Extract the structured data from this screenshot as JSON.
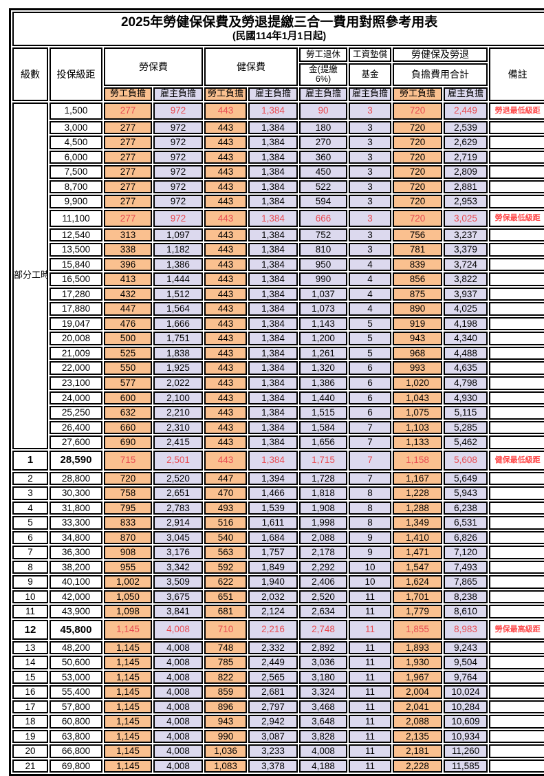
{
  "title": {
    "line1": "2025年勞健保保費及勞退提繳三合一費用對照參考用表",
    "line2": "(民國114年1月1日起)"
  },
  "header": {
    "level": "級數",
    "bracket": "投保級距",
    "labor_group": "勞保費",
    "health_group": "健保費",
    "pension_line1": "勞工退休",
    "pension_line2": "金(提繳6%)",
    "wage_fund_line1": "工資墊償",
    "wage_fund_line2": "基金",
    "total_line1": "勞健保及勞退",
    "total_line2": "負擔費用合計",
    "note": "備註",
    "sub": [
      "勞工負擔",
      "雇主負擔",
      "勞工負擔",
      "雇主負擔",
      "雇主負擔",
      "雇主負擔",
      "勞工負擔",
      "雇主負擔"
    ]
  },
  "group": {
    "label": "部分工時",
    "span": 23
  },
  "colors": {
    "employee_bg": "#FAC08F",
    "employer_bg": "#DCD9EE",
    "value_red": "#E84C52",
    "note_red": "#FF4D4D",
    "border": "#000000"
  },
  "rows": [
    {
      "level": "",
      "bracket": "1,500",
      "values": [
        "277",
        "972",
        "443",
        "1,384",
        "90",
        "3",
        "720",
        "2,449"
      ],
      "note": "勞退最低級距",
      "red": true,
      "bold": false
    },
    {
      "level": "",
      "bracket": "3,000",
      "values": [
        "277",
        "972",
        "443",
        "1,384",
        "180",
        "3",
        "720",
        "2,539"
      ],
      "note": "",
      "red": false,
      "bold": false
    },
    {
      "level": "",
      "bracket": "4,500",
      "values": [
        "277",
        "972",
        "443",
        "1,384",
        "270",
        "3",
        "720",
        "2,629"
      ],
      "note": "",
      "red": false,
      "bold": false
    },
    {
      "level": "",
      "bracket": "6,000",
      "values": [
        "277",
        "972",
        "443",
        "1,384",
        "360",
        "3",
        "720",
        "2,719"
      ],
      "note": "",
      "red": false,
      "bold": false
    },
    {
      "level": "",
      "bracket": "7,500",
      "values": [
        "277",
        "972",
        "443",
        "1,384",
        "450",
        "3",
        "720",
        "2,809"
      ],
      "note": "",
      "red": false,
      "bold": false
    },
    {
      "level": "",
      "bracket": "8,700",
      "values": [
        "277",
        "972",
        "443",
        "1,384",
        "522",
        "3",
        "720",
        "2,881"
      ],
      "note": "",
      "red": false,
      "bold": false
    },
    {
      "level": "",
      "bracket": "9,900",
      "values": [
        "277",
        "972",
        "443",
        "1,384",
        "594",
        "3",
        "720",
        "2,953"
      ],
      "note": "",
      "red": false,
      "bold": false
    },
    {
      "level": "",
      "bracket": "11,100",
      "values": [
        "277",
        "972",
        "443",
        "1,384",
        "666",
        "3",
        "720",
        "3,025"
      ],
      "note": "勞保最低級距",
      "red": true,
      "bold": false
    },
    {
      "level": "",
      "bracket": "12,540",
      "values": [
        "313",
        "1,097",
        "443",
        "1,384",
        "752",
        "3",
        "756",
        "3,237"
      ],
      "note": "",
      "red": false,
      "bold": false
    },
    {
      "level": "",
      "bracket": "13,500",
      "values": [
        "338",
        "1,182",
        "443",
        "1,384",
        "810",
        "3",
        "781",
        "3,379"
      ],
      "note": "",
      "red": false,
      "bold": false
    },
    {
      "level": "",
      "bracket": "15,840",
      "values": [
        "396",
        "1,386",
        "443",
        "1,384",
        "950",
        "4",
        "839",
        "3,724"
      ],
      "note": "",
      "red": false,
      "bold": false
    },
    {
      "level": "",
      "bracket": "16,500",
      "values": [
        "413",
        "1,444",
        "443",
        "1,384",
        "990",
        "4",
        "856",
        "3,822"
      ],
      "note": "",
      "red": false,
      "bold": false
    },
    {
      "level": "",
      "bracket": "17,280",
      "values": [
        "432",
        "1,512",
        "443",
        "1,384",
        "1,037",
        "4",
        "875",
        "3,937"
      ],
      "note": "",
      "red": false,
      "bold": false
    },
    {
      "level": "",
      "bracket": "17,880",
      "values": [
        "447",
        "1,564",
        "443",
        "1,384",
        "1,073",
        "4",
        "890",
        "4,025"
      ],
      "note": "",
      "red": false,
      "bold": false
    },
    {
      "level": "",
      "bracket": "19,047",
      "values": [
        "476",
        "1,666",
        "443",
        "1,384",
        "1,143",
        "5",
        "919",
        "4,198"
      ],
      "note": "",
      "red": false,
      "bold": false
    },
    {
      "level": "",
      "bracket": "20,008",
      "values": [
        "500",
        "1,751",
        "443",
        "1,384",
        "1,200",
        "5",
        "943",
        "4,340"
      ],
      "note": "",
      "red": false,
      "bold": false
    },
    {
      "level": "",
      "bracket": "21,009",
      "values": [
        "525",
        "1,838",
        "443",
        "1,384",
        "1,261",
        "5",
        "968",
        "4,488"
      ],
      "note": "",
      "red": false,
      "bold": false
    },
    {
      "level": "",
      "bracket": "22,000",
      "values": [
        "550",
        "1,925",
        "443",
        "1,384",
        "1,320",
        "6",
        "993",
        "4,635"
      ],
      "note": "",
      "red": false,
      "bold": false
    },
    {
      "level": "",
      "bracket": "23,100",
      "values": [
        "577",
        "2,022",
        "443",
        "1,384",
        "1,386",
        "6",
        "1,020",
        "4,798"
      ],
      "note": "",
      "red": false,
      "bold": false
    },
    {
      "level": "",
      "bracket": "24,000",
      "values": [
        "600",
        "2,100",
        "443",
        "1,384",
        "1,440",
        "6",
        "1,043",
        "4,930"
      ],
      "note": "",
      "red": false,
      "bold": false
    },
    {
      "level": "",
      "bracket": "25,250",
      "values": [
        "632",
        "2,210",
        "443",
        "1,384",
        "1,515",
        "6",
        "1,075",
        "5,115"
      ],
      "note": "",
      "red": false,
      "bold": false
    },
    {
      "level": "",
      "bracket": "26,400",
      "values": [
        "660",
        "2,310",
        "443",
        "1,384",
        "1,584",
        "7",
        "1,103",
        "5,285"
      ],
      "note": "",
      "red": false,
      "bold": false
    },
    {
      "level": "",
      "bracket": "27,600",
      "values": [
        "690",
        "2,415",
        "443",
        "1,384",
        "1,656",
        "7",
        "1,133",
        "5,462"
      ],
      "note": "",
      "red": false,
      "bold": false
    },
    {
      "level": "1",
      "bracket": "28,590",
      "values": [
        "715",
        "2,501",
        "443",
        "1,384",
        "1,715",
        "7",
        "1,158",
        "5,608"
      ],
      "note": "健保最低級距",
      "red": true,
      "bold": true
    },
    {
      "level": "2",
      "bracket": "28,800",
      "values": [
        "720",
        "2,520",
        "447",
        "1,394",
        "1,728",
        "7",
        "1,167",
        "5,649"
      ],
      "note": "",
      "red": false,
      "bold": false
    },
    {
      "level": "3",
      "bracket": "30,300",
      "values": [
        "758",
        "2,651",
        "470",
        "1,466",
        "1,818",
        "8",
        "1,228",
        "5,943"
      ],
      "note": "",
      "red": false,
      "bold": false
    },
    {
      "level": "4",
      "bracket": "31,800",
      "values": [
        "795",
        "2,783",
        "493",
        "1,539",
        "1,908",
        "8",
        "1,288",
        "6,238"
      ],
      "note": "",
      "red": false,
      "bold": false
    },
    {
      "level": "5",
      "bracket": "33,300",
      "values": [
        "833",
        "2,914",
        "516",
        "1,611",
        "1,998",
        "8",
        "1,349",
        "6,531"
      ],
      "note": "",
      "red": false,
      "bold": false
    },
    {
      "level": "6",
      "bracket": "34,800",
      "values": [
        "870",
        "3,045",
        "540",
        "1,684",
        "2,088",
        "9",
        "1,410",
        "6,826"
      ],
      "note": "",
      "red": false,
      "bold": false
    },
    {
      "level": "7",
      "bracket": "36,300",
      "values": [
        "908",
        "3,176",
        "563",
        "1,757",
        "2,178",
        "9",
        "1,471",
        "7,120"
      ],
      "note": "",
      "red": false,
      "bold": false
    },
    {
      "level": "8",
      "bracket": "38,200",
      "values": [
        "955",
        "3,342",
        "592",
        "1,849",
        "2,292",
        "10",
        "1,547",
        "7,493"
      ],
      "note": "",
      "red": false,
      "bold": false
    },
    {
      "level": "9",
      "bracket": "40,100",
      "values": [
        "1,002",
        "3,509",
        "622",
        "1,940",
        "2,406",
        "10",
        "1,624",
        "7,865"
      ],
      "note": "",
      "red": false,
      "bold": false
    },
    {
      "level": "10",
      "bracket": "42,000",
      "values": [
        "1,050",
        "3,675",
        "651",
        "2,032",
        "2,520",
        "11",
        "1,701",
        "8,238"
      ],
      "note": "",
      "red": false,
      "bold": false
    },
    {
      "level": "11",
      "bracket": "43,900",
      "values": [
        "1,098",
        "3,841",
        "681",
        "2,124",
        "2,634",
        "11",
        "1,779",
        "8,610"
      ],
      "note": "",
      "red": false,
      "bold": false
    },
    {
      "level": "12",
      "bracket": "45,800",
      "values": [
        "1,145",
        "4,008",
        "710",
        "2,216",
        "2,748",
        "11",
        "1,855",
        "8,983"
      ],
      "note": "勞保最高級距",
      "red": true,
      "bold": true
    },
    {
      "level": "13",
      "bracket": "48,200",
      "values": [
        "1,145",
        "4,008",
        "748",
        "2,332",
        "2,892",
        "11",
        "1,893",
        "9,243"
      ],
      "note": "",
      "red": false,
      "bold": false
    },
    {
      "level": "14",
      "bracket": "50,600",
      "values": [
        "1,145",
        "4,008",
        "785",
        "2,449",
        "3,036",
        "11",
        "1,930",
        "9,504"
      ],
      "note": "",
      "red": false,
      "bold": false
    },
    {
      "level": "15",
      "bracket": "53,000",
      "values": [
        "1,145",
        "4,008",
        "822",
        "2,565",
        "3,180",
        "11",
        "1,967",
        "9,764"
      ],
      "note": "",
      "red": false,
      "bold": false
    },
    {
      "level": "16",
      "bracket": "55,400",
      "values": [
        "1,145",
        "4,008",
        "859",
        "2,681",
        "3,324",
        "11",
        "2,004",
        "10,024"
      ],
      "note": "",
      "red": false,
      "bold": false
    },
    {
      "level": "17",
      "bracket": "57,800",
      "values": [
        "1,145",
        "4,008",
        "896",
        "2,797",
        "3,468",
        "11",
        "2,041",
        "10,284"
      ],
      "note": "",
      "red": false,
      "bold": false
    },
    {
      "level": "18",
      "bracket": "60,800",
      "values": [
        "1,145",
        "4,008",
        "943",
        "2,942",
        "3,648",
        "11",
        "2,088",
        "10,609"
      ],
      "note": "",
      "red": false,
      "bold": false
    },
    {
      "level": "19",
      "bracket": "63,800",
      "values": [
        "1,145",
        "4,008",
        "990",
        "3,087",
        "3,828",
        "11",
        "2,135",
        "10,934"
      ],
      "note": "",
      "red": false,
      "bold": false
    },
    {
      "level": "20",
      "bracket": "66,800",
      "values": [
        "1,145",
        "4,008",
        "1,036",
        "3,233",
        "4,008",
        "11",
        "2,181",
        "11,260"
      ],
      "note": "",
      "red": false,
      "bold": false
    },
    {
      "level": "21",
      "bracket": "69,800",
      "values": [
        "1,145",
        "4,008",
        "1,083",
        "3,378",
        "4,188",
        "11",
        "2,228",
        "11,585"
      ],
      "note": "",
      "red": false,
      "bold": false
    }
  ]
}
